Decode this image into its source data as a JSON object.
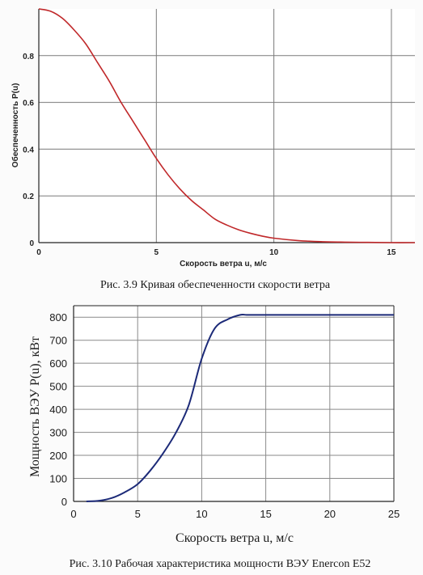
{
  "chart_data": [
    {
      "type": "line",
      "caption": "Рис. 3.9 Кривая обеспеченности скорости ветра",
      "xlabel": "Скорость ветра u, м/с",
      "ylabel": "Обеспеченность P(u)",
      "xlim": [
        0,
        16
      ],
      "ylim": [
        0,
        1
      ],
      "x_ticks": [
        "0",
        "5",
        "10",
        "15"
      ],
      "x_tick_values": [
        0,
        5,
        10,
        15
      ],
      "y_ticks": [
        "0",
        "0.2",
        "0.4",
        "0.6",
        "0.8"
      ],
      "y_tick_values": [
        0,
        0.2,
        0.4,
        0.6,
        0.8
      ],
      "grid": true,
      "line_color": "#c0282a",
      "series": [
        {
          "x": [
            0,
            0.5,
            1,
            1.5,
            2,
            2.5,
            3,
            3.5,
            4,
            4.5,
            5,
            5.5,
            6,
            6.5,
            7,
            7.5,
            8,
            8.5,
            9,
            9.5,
            10,
            11,
            12,
            13,
            14,
            15,
            16
          ],
          "y": [
            1.0,
            0.99,
            0.96,
            0.91,
            0.85,
            0.77,
            0.69,
            0.6,
            0.52,
            0.44,
            0.36,
            0.29,
            0.23,
            0.18,
            0.14,
            0.1,
            0.075,
            0.055,
            0.04,
            0.028,
            0.019,
            0.009,
            0.004,
            0.002,
            0.001,
            0.0,
            0.0
          ]
        }
      ]
    },
    {
      "type": "line",
      "caption": "Рис. 3.10 Рабочая характеристика мощности ВЭУ Enercon E52",
      "xlabel": "Скорость ветра u, м/с",
      "ylabel": "Мощность ВЭУ P(u), кВт",
      "xlim": [
        0,
        25
      ],
      "ylim": [
        0,
        850
      ],
      "x_ticks": [
        "0",
        "5",
        "10",
        "15",
        "20",
        "25"
      ],
      "x_tick_values": [
        0,
        5,
        10,
        15,
        20,
        25
      ],
      "y_ticks": [
        "0",
        "100",
        "200",
        "300",
        "400",
        "500",
        "600",
        "700",
        "800"
      ],
      "y_tick_values": [
        0,
        100,
        200,
        300,
        400,
        500,
        600,
        700,
        800
      ],
      "grid": true,
      "line_color": "#1c2a78",
      "series": [
        {
          "x": [
            1,
            2,
            3,
            4,
            5,
            6,
            7,
            8,
            9,
            10,
            11,
            12,
            13,
            13.5,
            14,
            15,
            16,
            17,
            18,
            19,
            20,
            21,
            22,
            23,
            24,
            25
          ],
          "y": [
            0,
            3,
            15,
            40,
            75,
            135,
            210,
            300,
            420,
            620,
            750,
            790,
            810,
            810,
            810,
            810,
            810,
            810,
            810,
            810,
            810,
            810,
            810,
            810,
            810,
            810
          ]
        }
      ]
    }
  ]
}
